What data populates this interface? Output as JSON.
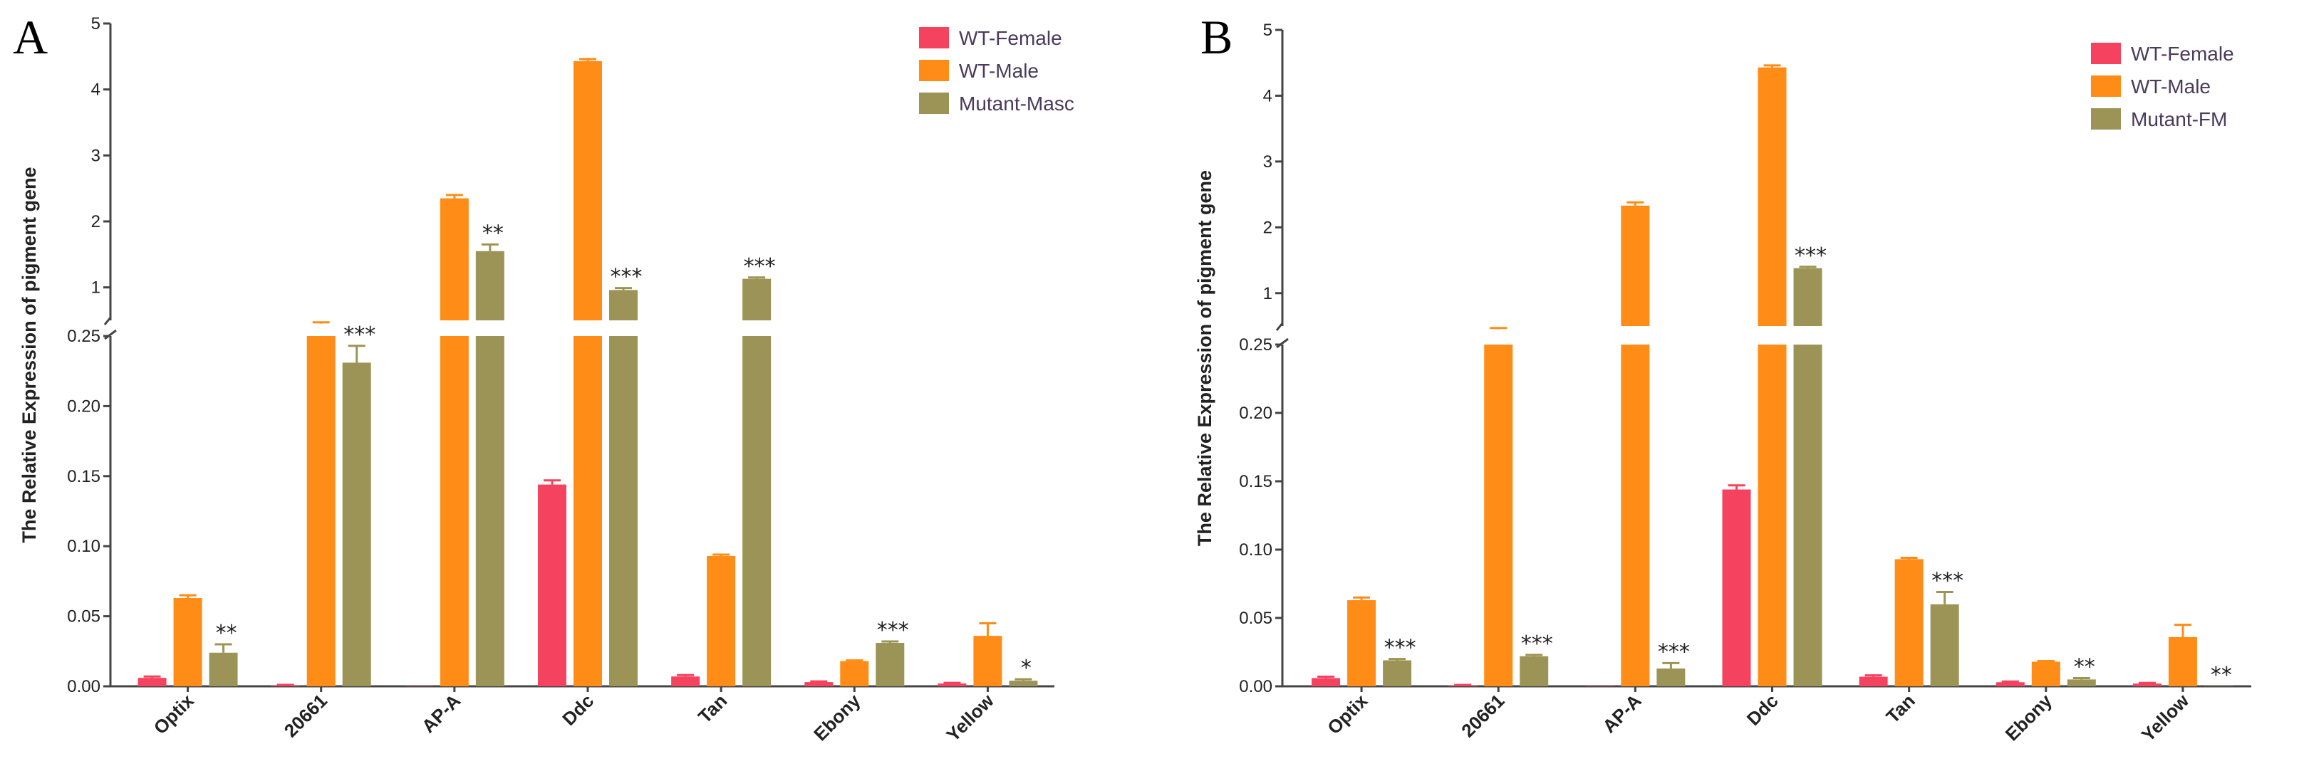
{
  "colors": {
    "wt_female": "#F5425F",
    "wt_male": "#FF8C16",
    "mutant": "#9C9456",
    "axis": "#444444"
  },
  "chart_data": [
    {
      "panel_label": "A",
      "type": "bar",
      "ylabel": "The Relative Expression of pigment gene",
      "categories": [
        "Optix",
        "20661",
        "AP-A",
        "Ddc",
        "Tan",
        "Ebony",
        "Yellow"
      ],
      "y_axis_break": {
        "lower_range": [
          0,
          0.25
        ],
        "upper_range": [
          0.5,
          5
        ]
      },
      "lower_ticks": [
        "0.00",
        "0.05",
        "0.10",
        "0.15",
        "0.20",
        "0.25"
      ],
      "upper_ticks": [
        "1",
        "2",
        "3",
        "4",
        "5"
      ],
      "legend": [
        "WT-Female",
        "WT-Male",
        "Mutant-Masc"
      ],
      "series": [
        {
          "name": "WT-Female",
          "values": [
            0.006,
            0.0005,
            0.0,
            0.144,
            0.007,
            0.003,
            0.002
          ],
          "errors": [
            0.001,
            0.0005,
            0.0,
            0.003,
            0.001,
            0.0005,
            0.0005
          ]
        },
        {
          "name": "WT-Male",
          "values": [
            0.063,
            0.45,
            2.35,
            4.43,
            0.093,
            0.018,
            0.036
          ],
          "errors": [
            0.002,
            0.02,
            0.05,
            0.03,
            0.001,
            0.0005,
            0.009
          ]
        },
        {
          "name": "Mutant-Masc",
          "values": [
            0.024,
            0.231,
            1.55,
            0.96,
            1.13,
            0.031,
            0.004
          ],
          "errors": [
            0.006,
            0.012,
            0.1,
            0.03,
            0.02,
            0.001,
            0.001
          ]
        }
      ],
      "significance": [
        "**",
        "***",
        "**",
        "***",
        "***",
        "***",
        "*"
      ]
    },
    {
      "panel_label": "B",
      "type": "bar",
      "ylabel": "The Relative Expression of pigment gene",
      "categories": [
        "Optix",
        "20661",
        "AP-A",
        "Ddc",
        "Tan",
        "Ebony",
        "Yellow"
      ],
      "y_axis_break": {
        "lower_range": [
          0,
          0.25
        ],
        "upper_range": [
          0.5,
          5
        ]
      },
      "lower_ticks": [
        "0.00",
        "0.05",
        "0.10",
        "0.15",
        "0.20",
        "0.25"
      ],
      "upper_ticks": [
        "1",
        "2",
        "3",
        "4",
        "5"
      ],
      "legend": [
        "WT-Female",
        "WT-Male",
        "Mutant-FM"
      ],
      "series": [
        {
          "name": "WT-Female",
          "values": [
            0.006,
            0.0005,
            0.0,
            0.144,
            0.007,
            0.003,
            0.002
          ],
          "errors": [
            0.001,
            0.0005,
            0.0,
            0.003,
            0.001,
            0.0005,
            0.0005
          ]
        },
        {
          "name": "WT-Male",
          "values": [
            0.063,
            0.45,
            2.33,
            4.43,
            0.093,
            0.018,
            0.036
          ],
          "errors": [
            0.002,
            0.02,
            0.05,
            0.03,
            0.001,
            0.0005,
            0.009
          ]
        },
        {
          "name": "Mutant-FM",
          "values": [
            0.019,
            0.022,
            0.013,
            1.38,
            0.06,
            0.005,
            0.0
          ],
          "errors": [
            0.001,
            0.001,
            0.004,
            0.02,
            0.009,
            0.001,
            0.0
          ]
        }
      ],
      "significance": [
        "***",
        "***",
        "***",
        "***",
        "***",
        "**",
        "**"
      ]
    }
  ]
}
